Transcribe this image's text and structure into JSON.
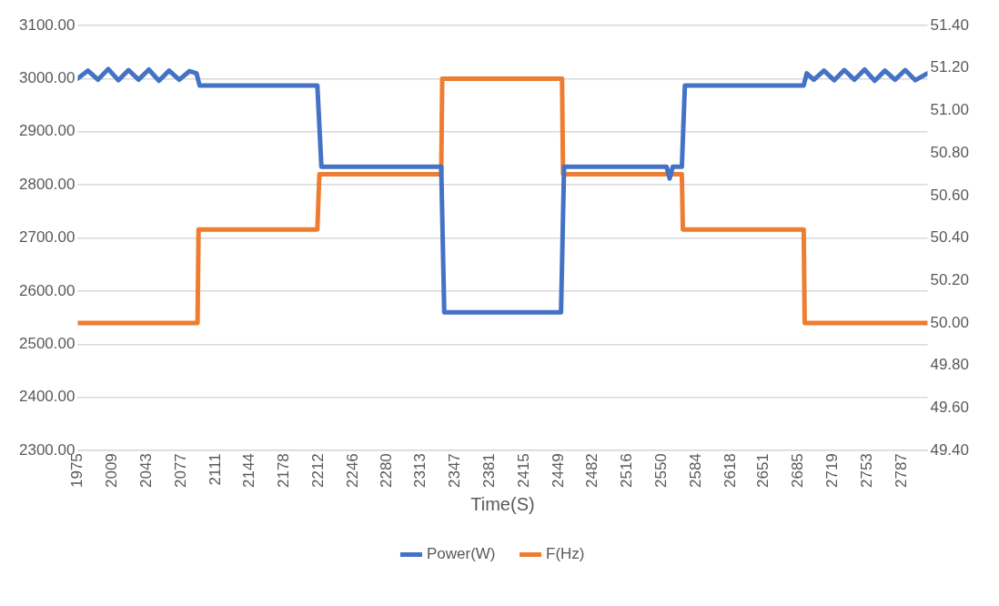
{
  "chart_data": {
    "type": "line",
    "xlabel": "Time(S)",
    "legend": "bottom",
    "grid": "y",
    "marker": "none",
    "line_style": "solid",
    "xlim": [
      1975,
      2812
    ],
    "xticks": [
      1975,
      2009,
      2043,
      2077,
      2111,
      2144,
      2178,
      2212,
      2246,
      2280,
      2313,
      2347,
      2381,
      2415,
      2449,
      2482,
      2516,
      2550,
      2584,
      2618,
      2651,
      2685,
      2719,
      2753,
      2787
    ],
    "ylim": [
      2300,
      3100
    ],
    "yticks": [
      {
        "value": 2300,
        "label": "2300.00"
      },
      {
        "value": 2400,
        "label": "2400.00"
      },
      {
        "value": 2500,
        "label": "2500.00"
      },
      {
        "value": 2600,
        "label": "2600.00"
      },
      {
        "value": 2700,
        "label": "2700.00"
      },
      {
        "value": 2800,
        "label": "2800.00"
      },
      {
        "value": 2900,
        "label": "2900.00"
      },
      {
        "value": 3000,
        "label": "3000.00"
      },
      {
        "value": 3100,
        "label": "3100.00"
      }
    ],
    "y2lim": [
      49.4,
      51.4
    ],
    "y2ticks": [
      {
        "value": 49.4,
        "label": "49.40"
      },
      {
        "value": 49.6,
        "label": "49.60"
      },
      {
        "value": 49.8,
        "label": "49.80"
      },
      {
        "value": 50,
        "label": "50.00"
      },
      {
        "value": 50.2,
        "label": "50.20"
      },
      {
        "value": 50.4,
        "label": "50.40"
      },
      {
        "value": 50.6,
        "label": "50.60"
      },
      {
        "value": 50.8,
        "label": "50.80"
      },
      {
        "value": 51,
        "label": "51.00"
      },
      {
        "value": 51.2,
        "label": "51.20"
      },
      {
        "value": 51.4,
        "label": "51.40"
      }
    ],
    "series": [
      {
        "name": "Power(W)",
        "color": "#4472c4",
        "x": [
          1975,
          1985,
          1995,
          2005,
          2015,
          2025,
          2035,
          2045,
          2055,
          2065,
          2075,
          2085,
          2092,
          2095,
          2211,
          2215,
          2333,
          2336,
          2451,
          2454,
          2555,
          2558,
          2561,
          2570,
          2573,
          2690,
          2693,
          2700,
          2710,
          2720,
          2730,
          2740,
          2750,
          2760,
          2770,
          2780,
          2790,
          2800,
          2812
        ],
        "values": [
          3000,
          3015,
          2998,
          3018,
          2997,
          3016,
          2998,
          3017,
          2996,
          3015,
          2998,
          3014,
          3010,
          2987,
          2987,
          2834,
          2834,
          2560,
          2560,
          2834,
          2834,
          2812,
          2834,
          2834,
          2987,
          2987,
          3010,
          2998,
          3015,
          2997,
          3016,
          2998,
          3017,
          2996,
          3015,
          2998,
          3016,
          2997,
          3010
        ]
      },
      {
        "name": "F(Hz)",
        "color": "#ed7d31",
        "axis": "y2",
        "x": [
          1975,
          2093,
          2094,
          2211,
          2213,
          2333,
          2334,
          2452,
          2453,
          2570,
          2571,
          2690,
          2691,
          2812
        ],
        "values": [
          50.0,
          50.0,
          50.44,
          50.44,
          50.7,
          50.7,
          51.15,
          51.15,
          50.7,
          50.7,
          50.44,
          50.44,
          50.0,
          50.0
        ]
      }
    ]
  }
}
